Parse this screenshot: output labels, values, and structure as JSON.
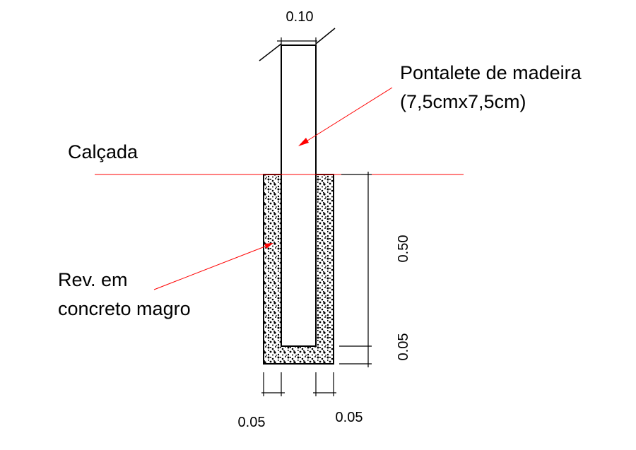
{
  "labels": {
    "dim_top_width": "0.10",
    "pontalete_line1": "Pontalete de madeira",
    "pontalete_line2": "(7,5cmx7,5cm)",
    "calcada": "Calçada",
    "rev_line1": "Rev. em",
    "rev_line2": "concreto magro",
    "dim_depth": "0.50",
    "dim_bottom": "0.05",
    "dim_left_wall": "0.05",
    "dim_right_wall": "0.05"
  },
  "colors": {
    "line": "#000000",
    "leader": "#ff0000",
    "ground_line": "#ff0000",
    "background": "#ffffff"
  }
}
